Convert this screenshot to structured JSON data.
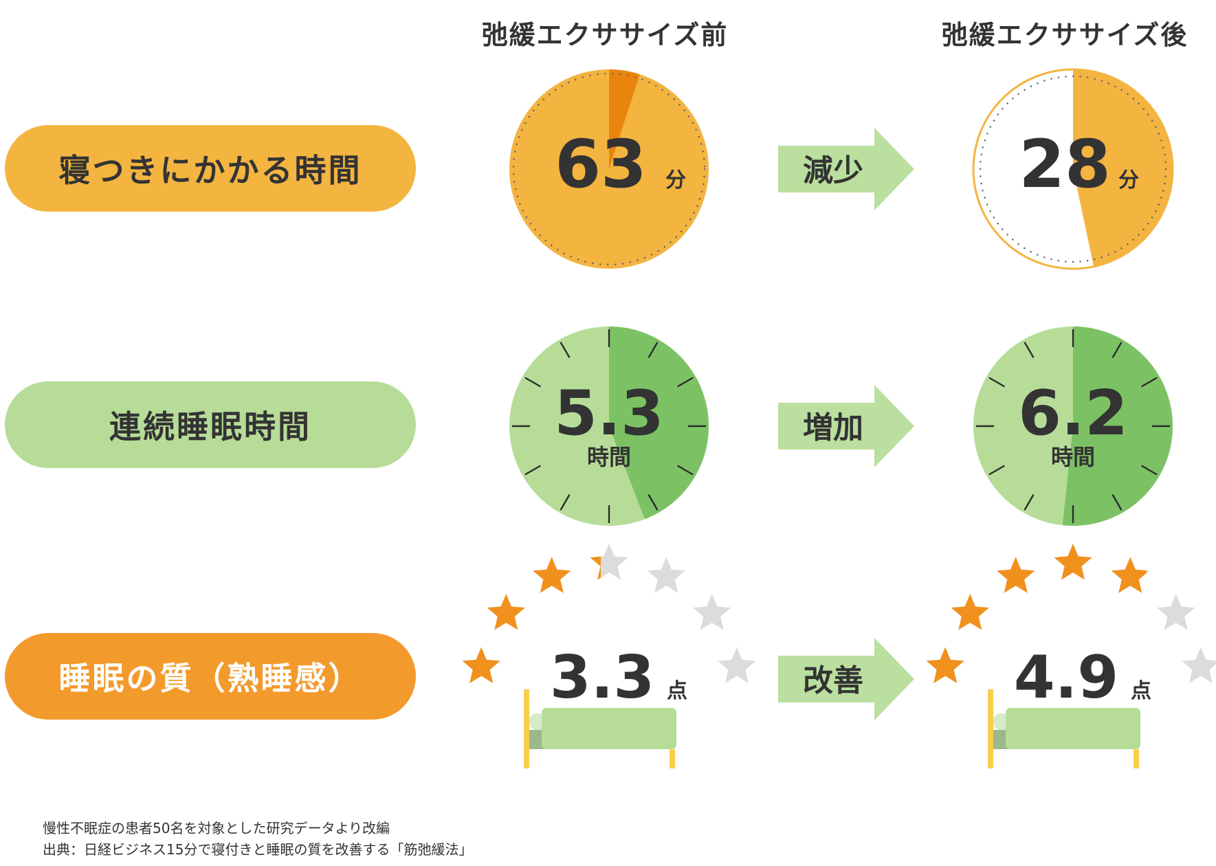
{
  "columns": {
    "before": "弛緩エクササイズ前",
    "after": "弛緩エクササイズ後"
  },
  "colors": {
    "orange_light": "#F3B440",
    "orange_dark": "#E9850D",
    "orange_pill": "#F39A2C",
    "orange_star": "#F0911E",
    "green_light": "#B7DC98",
    "green_dark": "#7CC264",
    "arrow_green": "#BADF9E",
    "gray_star": "#DCDCDC",
    "bed_post": "#F6CF4C",
    "text": "#333333"
  },
  "chart_data": [
    {
      "type": "pie",
      "metric": "寝つきにかかる時間",
      "unit": "分",
      "scale_max": 60,
      "before": {
        "value": 63
      },
      "after": {
        "value": 28
      },
      "change": "減少"
    },
    {
      "type": "pie",
      "metric": "連続睡眠時間",
      "unit": "時間",
      "scale_max": 12,
      "before": {
        "value": 5.3
      },
      "after": {
        "value": 6.2
      },
      "change": "増加"
    },
    {
      "type": "rating",
      "metric": "睡眠の質（熟睡感）",
      "unit": "点",
      "scale_max": 7,
      "before": {
        "value": 3.3
      },
      "after": {
        "value": 4.9
      },
      "change": "改善"
    }
  ],
  "notes": [
    "慢性不眠症の患者50名を対象とした研究データより改編",
    "出典：日経ビジネス15分で寝付きと睡眠の質を改善する「筋弛緩法」"
  ]
}
